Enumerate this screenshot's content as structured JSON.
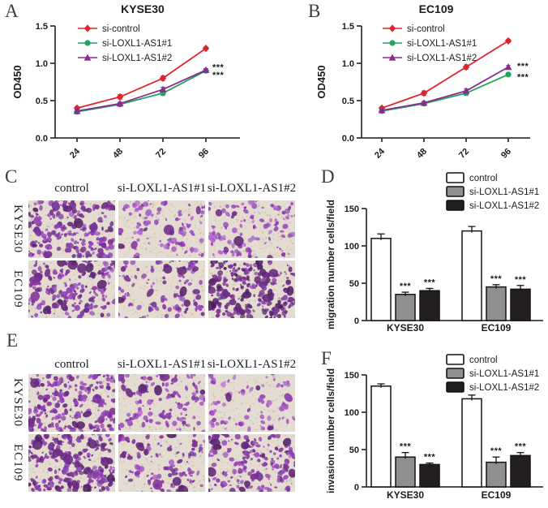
{
  "figure": {
    "panel_letters": {
      "A": "A",
      "B": "B",
      "C": "C",
      "D": "D",
      "E": "E",
      "F": "F"
    }
  },
  "colors": {
    "red": "#e0242e",
    "green": "#23a45f",
    "purple": "#872d8f",
    "bar_white": "#ffffff",
    "bar_gray": "#8f8f8f",
    "bar_black": "#231f20",
    "axis": "#383838",
    "text": "#1c1c1c",
    "micro_bg": "#e5dcd1",
    "stain_purple": "#8a4bb0"
  },
  "chart_data": [
    {
      "id": "A",
      "type": "line",
      "title": "KYSE30",
      "ylabel": "OD450",
      "x_categories": [
        "24",
        "48",
        "72",
        "96"
      ],
      "yticks": [
        "0.0",
        "0.5",
        "1.0",
        "1.5"
      ],
      "ylim": [
        0,
        1.5
      ],
      "grid": false,
      "legend_position": "top-left",
      "series": [
        {
          "name": "si-control",
          "color": "#e0242e",
          "marker": "diamond",
          "values": [
            0.4,
            0.55,
            0.8,
            1.2
          ],
          "errors": [
            0.02,
            0.03,
            0.03,
            0.02
          ]
        },
        {
          "name": "si-LOXL1-AS1#1",
          "color": "#23a45f",
          "marker": "circle",
          "values": [
            0.35,
            0.45,
            0.6,
            0.9
          ],
          "errors": [
            0.02,
            0.02,
            0.03,
            0.02
          ]
        },
        {
          "name": "si-LOXL1-AS1#2",
          "color": "#872d8f",
          "marker": "triangle",
          "values": [
            0.36,
            0.46,
            0.65,
            0.91
          ],
          "errors": [
            0.02,
            0.02,
            0.03,
            0.02
          ]
        }
      ],
      "significance": [
        {
          "text": "***",
          "at_value": 0.95
        },
        {
          "text": "***",
          "at_value": 0.85
        }
      ]
    },
    {
      "id": "B",
      "type": "line",
      "title": "EC109",
      "ylabel": "OD450",
      "x_categories": [
        "24",
        "48",
        "72",
        "96"
      ],
      "yticks": [
        "0.0",
        "0.5",
        "1.0",
        "1.5"
      ],
      "ylim": [
        0,
        1.5
      ],
      "grid": false,
      "legend_position": "top-left",
      "series": [
        {
          "name": "si-control",
          "color": "#e0242e",
          "marker": "diamond",
          "values": [
            0.4,
            0.6,
            0.95,
            1.3
          ],
          "errors": [
            0.02,
            0.03,
            0.03,
            0.02
          ]
        },
        {
          "name": "si-LOXL1-AS1#1",
          "color": "#23a45f",
          "marker": "circle",
          "values": [
            0.36,
            0.46,
            0.6,
            0.85
          ],
          "errors": [
            0.02,
            0.02,
            0.03,
            0.02
          ]
        },
        {
          "name": "si-LOXL1-AS1#2",
          "color": "#872d8f",
          "marker": "triangle",
          "values": [
            0.37,
            0.47,
            0.63,
            0.95
          ],
          "errors": [
            0.02,
            0.02,
            0.03,
            0.02
          ]
        }
      ],
      "significance": [
        {
          "text": "***",
          "at_value": 0.97
        },
        {
          "text": "***",
          "at_value": 0.82
        }
      ]
    },
    {
      "id": "D",
      "type": "bar",
      "ylabel": "migration number cells/field",
      "categories": [
        "KYSE30",
        "EC109"
      ],
      "yticks": [
        "0",
        "50",
        "100",
        "150"
      ],
      "ylim": [
        0,
        150
      ],
      "grid": false,
      "legend_position": "top-right",
      "series": [
        {
          "name": "control",
          "fill": "#ffffff",
          "values": [
            110,
            120
          ],
          "errors": [
            6,
            6
          ],
          "significance": [
            "",
            ""
          ]
        },
        {
          "name": "si-LOXL1-AS1#1",
          "fill": "#8f8f8f",
          "values": [
            35,
            45
          ],
          "errors": [
            3,
            3
          ],
          "significance": [
            "***",
            "***"
          ]
        },
        {
          "name": "si-LOXL1-AS1#2",
          "fill": "#231f20",
          "values": [
            40,
            42
          ],
          "errors": [
            3,
            5
          ],
          "significance": [
            "***",
            "***"
          ]
        }
      ]
    },
    {
      "id": "F",
      "type": "bar",
      "ylabel": "invasion number cells/field",
      "categories": [
        "KYSE30",
        "EC109"
      ],
      "yticks": [
        "0",
        "50",
        "100",
        "150"
      ],
      "ylim": [
        0,
        150
      ],
      "grid": false,
      "legend_position": "top-right",
      "series": [
        {
          "name": "control",
          "fill": "#ffffff",
          "values": [
            135,
            118
          ],
          "errors": [
            3,
            5
          ],
          "significance": [
            "",
            ""
          ]
        },
        {
          "name": "si-LOXL1-AS1#1",
          "fill": "#8f8f8f",
          "values": [
            40,
            33
          ],
          "errors": [
            6,
            7
          ],
          "significance": [
            "***",
            "***"
          ]
        },
        {
          "name": "si-LOXL1-AS1#2",
          "fill": "#231f20",
          "values": [
            30,
            42
          ],
          "errors": [
            2,
            4
          ],
          "significance": [
            "***",
            "***"
          ]
        }
      ]
    }
  ],
  "panels": {
    "C": {
      "col_headers": [
        "control",
        "si-LOXL1-AS1#1",
        "si-LOXL1-AS1#2"
      ],
      "row_labels": [
        "KYSE30",
        "EC109"
      ],
      "cells": [
        {
          "cell_line": "KYSE30",
          "treatment": "control",
          "cell_density": 160,
          "stain_intensity": 0.5
        },
        {
          "cell_line": "KYSE30",
          "treatment": "si-LOXL1-AS1#1",
          "cell_density": 70,
          "stain_intensity": 0.38
        },
        {
          "cell_line": "KYSE30",
          "treatment": "si-LOXL1-AS1#2",
          "cell_density": 95,
          "stain_intensity": 0.34
        },
        {
          "cell_line": "EC109",
          "treatment": "control",
          "cell_density": 150,
          "stain_intensity": 0.55
        },
        {
          "cell_line": "EC109",
          "treatment": "si-LOXL1-AS1#1",
          "cell_density": 85,
          "stain_intensity": 0.5
        },
        {
          "cell_line": "EC109",
          "treatment": "si-LOXL1-AS1#2",
          "cell_density": 165,
          "stain_intensity": 0.72
        }
      ]
    },
    "E": {
      "col_headers": [
        "control",
        "si-LOXL1-AS1#1",
        "si-LOXL1-AS1#2"
      ],
      "row_labels": [
        "KYSE30",
        "EC109"
      ],
      "cells": [
        {
          "cell_line": "KYSE30",
          "treatment": "control",
          "cell_density": 170,
          "stain_intensity": 0.5
        },
        {
          "cell_line": "KYSE30",
          "treatment": "si-LOXL1-AS1#1",
          "cell_density": 95,
          "stain_intensity": 0.45
        },
        {
          "cell_line": "KYSE30",
          "treatment": "si-LOXL1-AS1#2",
          "cell_density": 55,
          "stain_intensity": 0.3
        },
        {
          "cell_line": "EC109",
          "treatment": "control",
          "cell_density": 185,
          "stain_intensity": 0.6
        },
        {
          "cell_line": "EC109",
          "treatment": "si-LOXL1-AS1#1",
          "cell_density": 90,
          "stain_intensity": 0.55
        },
        {
          "cell_line": "EC109",
          "treatment": "si-LOXL1-AS1#2",
          "cell_density": 140,
          "stain_intensity": 0.5
        }
      ]
    }
  }
}
